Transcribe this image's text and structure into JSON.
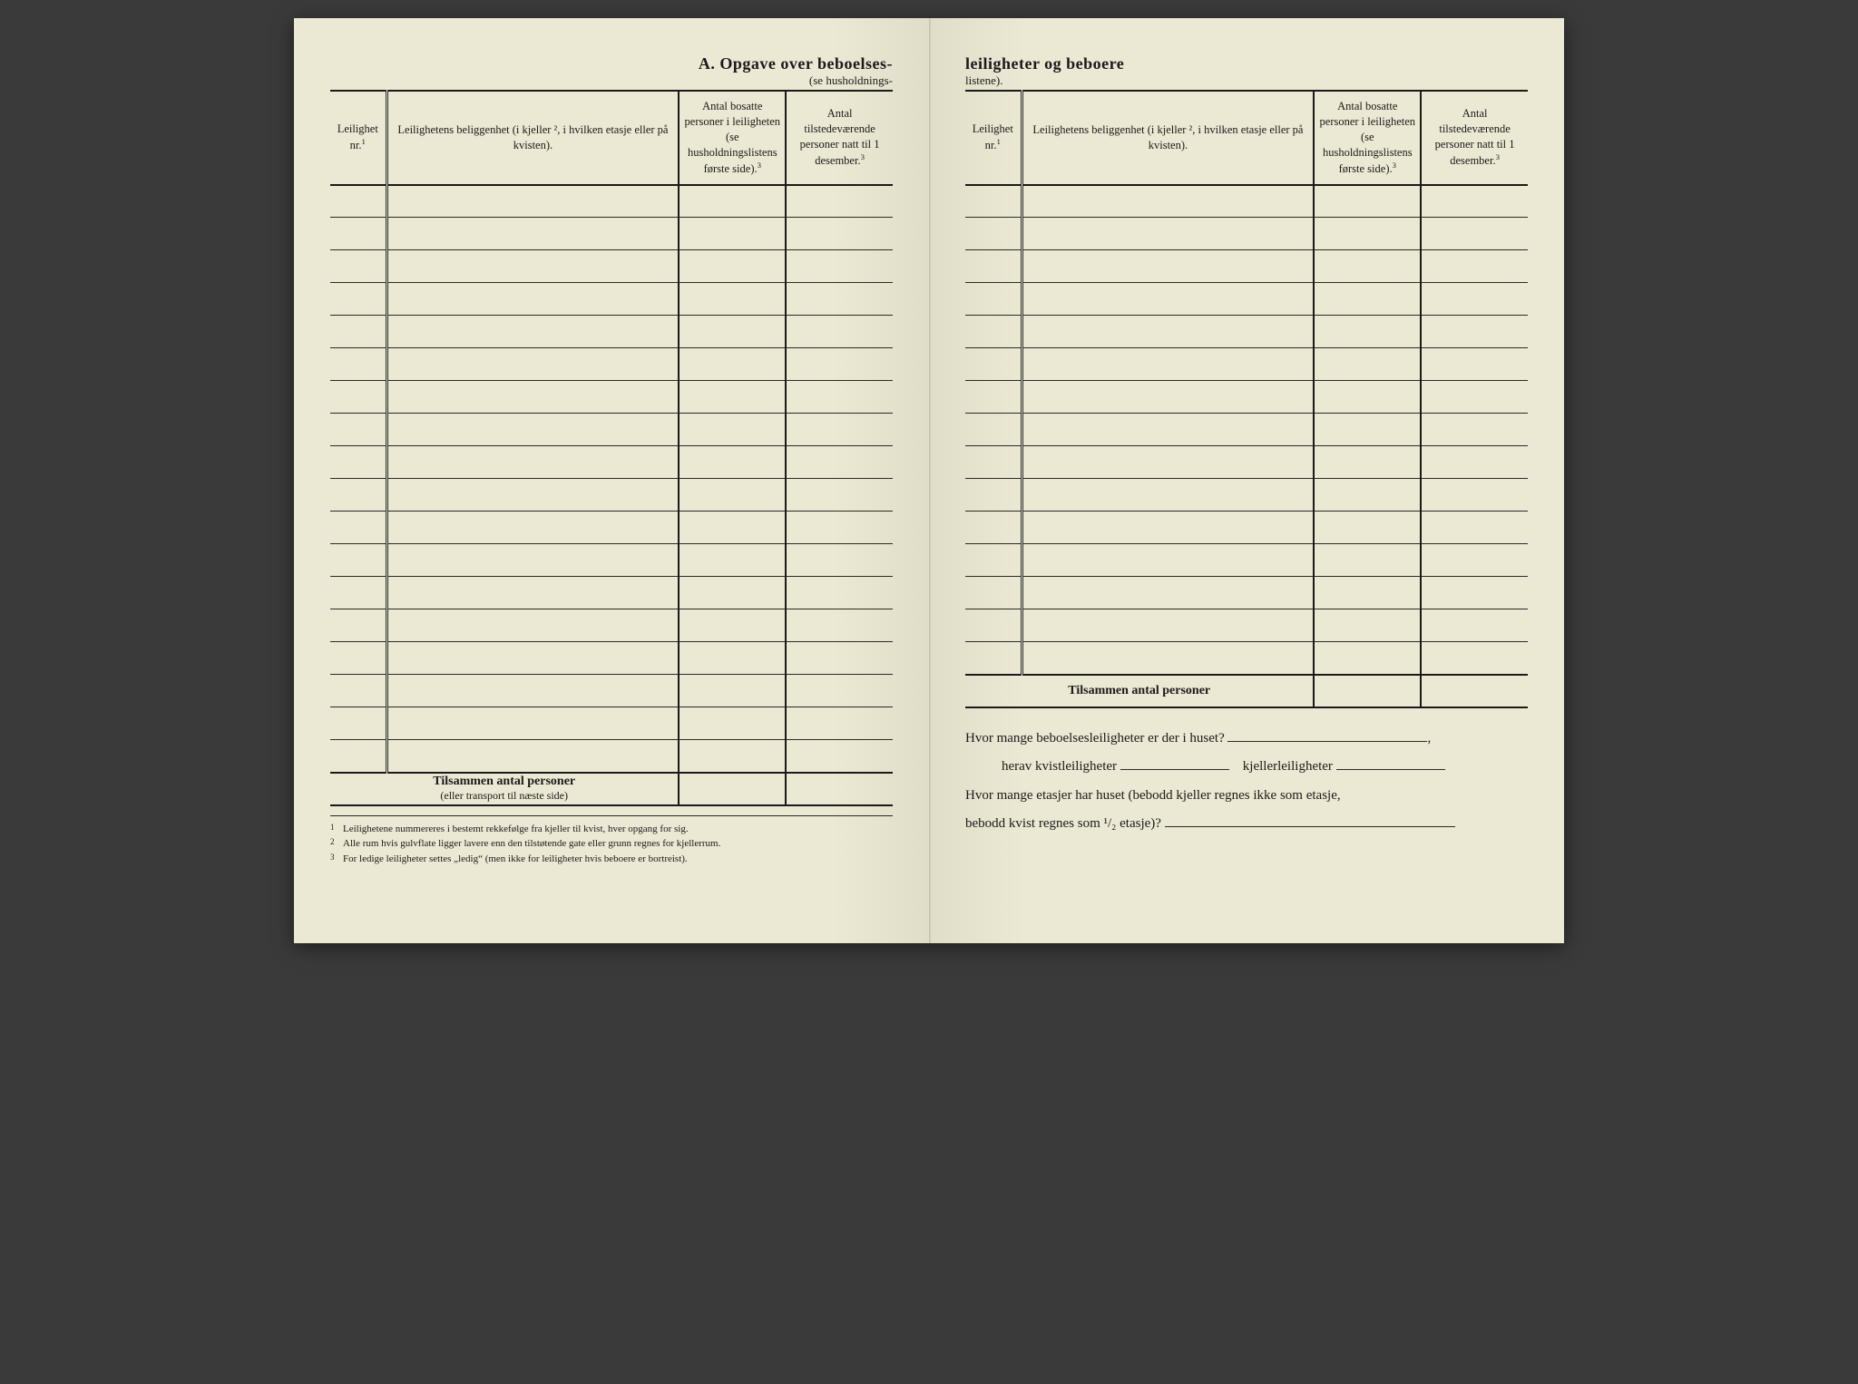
{
  "title_left": "A.   Opgave over beboelses-",
  "subtitle_left": "(se husholdnings-",
  "title_right": "leiligheter og beboere",
  "subtitle_right": "listene).",
  "columns": {
    "nr": "Leilighet nr.",
    "nr_sup": "1",
    "loc": "Leilighetens beliggenhet (i kjeller ², i hvilken etasje eller på kvisten).",
    "c3": "Antal bosatte personer i leiligheten (se husholdningslistens første side).",
    "c3_sup": "3",
    "c4": "Antal tilstedeværende personer natt til 1 desember.",
    "c4_sup": "3"
  },
  "left_rows": 18,
  "right_rows": 15,
  "summary_label": "Tilsammen antal personer",
  "summary_sub_left": "(eller transport til næste side)",
  "footnotes": [
    "Leilighetene nummereres i bestemt rekkefølge fra kjeller til kvist, hver opgang for sig.",
    "Alle rum hvis gulvflate ligger lavere enn den tilstøtende gate eller grunn regnes for kjellerrum.",
    "For ledige leiligheter settes „ledig“ (men ikke for leiligheter hvis beboere er bortreist)."
  ],
  "questions": {
    "q1_a": "Hvor mange beboelsesleiligheter er der i huset?",
    "q1_tail": ",",
    "q2_a": "herav kvistleiligheter",
    "q2_b": "kjellerleiligheter",
    "q3_a": "Hvor mange etasjer har huset (bebodd kjeller regnes ikke som etasje,",
    "q3_b": "bebodd kvist regnes som ¹/₂ etasje)?"
  },
  "colors": {
    "paper": "#eae7d2",
    "ink": "#1a1a1a",
    "rule": "#2a2a2a"
  }
}
